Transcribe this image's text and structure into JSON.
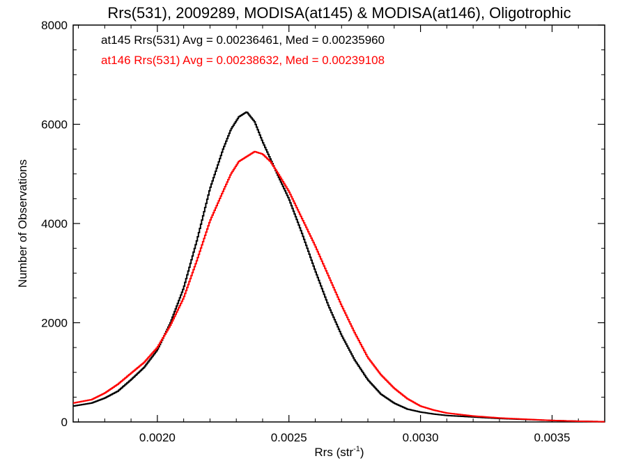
{
  "chart_data": {
    "type": "line",
    "title": "Rrs(531), 2009289, MODISA(at145) & MODISA(at146), Oligotrophic",
    "xlabel_main": "Rrs (str",
    "xlabel_sup": "-1",
    "xlabel_close": ")",
    "ylabel": "Number of Observations",
    "xlim": [
      0.00168,
      0.0037
    ],
    "ylim": [
      0,
      8000
    ],
    "x_ticks": [
      0.002,
      0.0025,
      0.003,
      0.0035
    ],
    "x_tick_labels": [
      "0.0020",
      "0.0025",
      "0.0030",
      "0.0035"
    ],
    "y_ticks": [
      0,
      2000,
      4000,
      6000,
      8000
    ],
    "y_tick_labels": [
      "0",
      "2000",
      "4000",
      "6000",
      "8000"
    ],
    "grid": false,
    "series": [
      {
        "name": "at145",
        "annotation": "at145 Rrs(531) Avg = 0.00236461, Med = 0.00235960",
        "color": "#000000",
        "x": [
          0.00168,
          0.00175,
          0.0018,
          0.00185,
          0.0019,
          0.00195,
          0.002,
          0.00205,
          0.0021,
          0.00215,
          0.0022,
          0.00225,
          0.00228,
          0.00231,
          0.00234,
          0.00237,
          0.0024,
          0.00243,
          0.00246,
          0.0025,
          0.00255,
          0.0026,
          0.00265,
          0.0027,
          0.00275,
          0.0028,
          0.00285,
          0.0029,
          0.00295,
          0.003,
          0.00305,
          0.0031,
          0.0032,
          0.0033,
          0.0034,
          0.0035,
          0.0036,
          0.0037
        ],
        "y": [
          320,
          380,
          480,
          620,
          850,
          1100,
          1450,
          2000,
          2700,
          3650,
          4700,
          5500,
          5900,
          6150,
          6250,
          6050,
          5650,
          5300,
          4950,
          4500,
          3800,
          3050,
          2350,
          1750,
          1250,
          850,
          560,
          380,
          260,
          200,
          160,
          130,
          100,
          70,
          50,
          30,
          15,
          5
        ]
      },
      {
        "name": "at146",
        "annotation": "at146 Rrs(531) Avg = 0.00238632, Med = 0.00239108",
        "color": "#ff0000",
        "x": [
          0.00168,
          0.00175,
          0.0018,
          0.00185,
          0.0019,
          0.00195,
          0.002,
          0.00205,
          0.0021,
          0.00215,
          0.0022,
          0.00225,
          0.00228,
          0.00231,
          0.00234,
          0.00237,
          0.0024,
          0.00243,
          0.00246,
          0.0025,
          0.00255,
          0.0026,
          0.00265,
          0.0027,
          0.00275,
          0.0028,
          0.00285,
          0.0029,
          0.00295,
          0.003,
          0.00305,
          0.0031,
          0.0032,
          0.0033,
          0.0034,
          0.0035,
          0.0036,
          0.0037
        ],
        "y": [
          380,
          450,
          580,
          760,
          980,
          1200,
          1500,
          1950,
          2500,
          3250,
          4050,
          4650,
          5000,
          5250,
          5350,
          5450,
          5400,
          5250,
          5000,
          4650,
          4100,
          3550,
          2950,
          2350,
          1800,
          1300,
          950,
          680,
          470,
          320,
          240,
          180,
          120,
          80,
          55,
          30,
          15,
          5
        ]
      }
    ]
  }
}
